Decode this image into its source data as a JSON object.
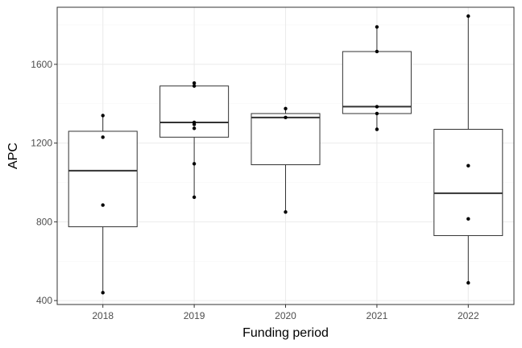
{
  "chart_data": {
    "type": "box",
    "xlabel": "Funding period",
    "ylabel": "APC",
    "ylim": [
      380,
      1890
    ],
    "yticks": [
      400,
      800,
      1200,
      1600
    ],
    "grid": true,
    "categories": [
      "2018",
      "2019",
      "2020",
      "2021",
      "2022"
    ],
    "boxes": [
      {
        "category": "2018",
        "min": 440,
        "q1": 775,
        "median": 1060,
        "q3": 1260,
        "max": 1340
      },
      {
        "category": "2019",
        "min": 925,
        "q1": 1230,
        "median": 1305,
        "q3": 1490,
        "max": 1505
      },
      {
        "category": "2020",
        "min": 850,
        "q1": 1090,
        "median": 1330,
        "q3": 1350,
        "max": 1375
      },
      {
        "category": "2021",
        "min": 1270,
        "q1": 1350,
        "median": 1385,
        "q3": 1665,
        "max": 1790
      },
      {
        "category": "2022",
        "min": 490,
        "q1": 730,
        "median": 945,
        "q3": 1270,
        "max": 1845
      }
    ],
    "points": [
      {
        "category": "2018",
        "values": [
          1340,
          1230,
          885,
          440
        ]
      },
      {
        "category": "2019",
        "values": [
          1505,
          1490,
          1305,
          1295,
          1275,
          1095,
          925
        ]
      },
      {
        "category": "2020",
        "values": [
          1375,
          1330,
          850
        ]
      },
      {
        "category": "2021",
        "values": [
          1790,
          1665,
          1385,
          1350,
          1270
        ]
      },
      {
        "category": "2022",
        "values": [
          1845,
          1085,
          815,
          490
        ]
      }
    ],
    "colors": {
      "panel_border": "#333333",
      "grid_major": "#ebebeb",
      "grid_minor": "#f5f5f5",
      "box_line": "#333333",
      "median_line": "#333333",
      "point": "#000000",
      "tick": "#333333"
    }
  }
}
